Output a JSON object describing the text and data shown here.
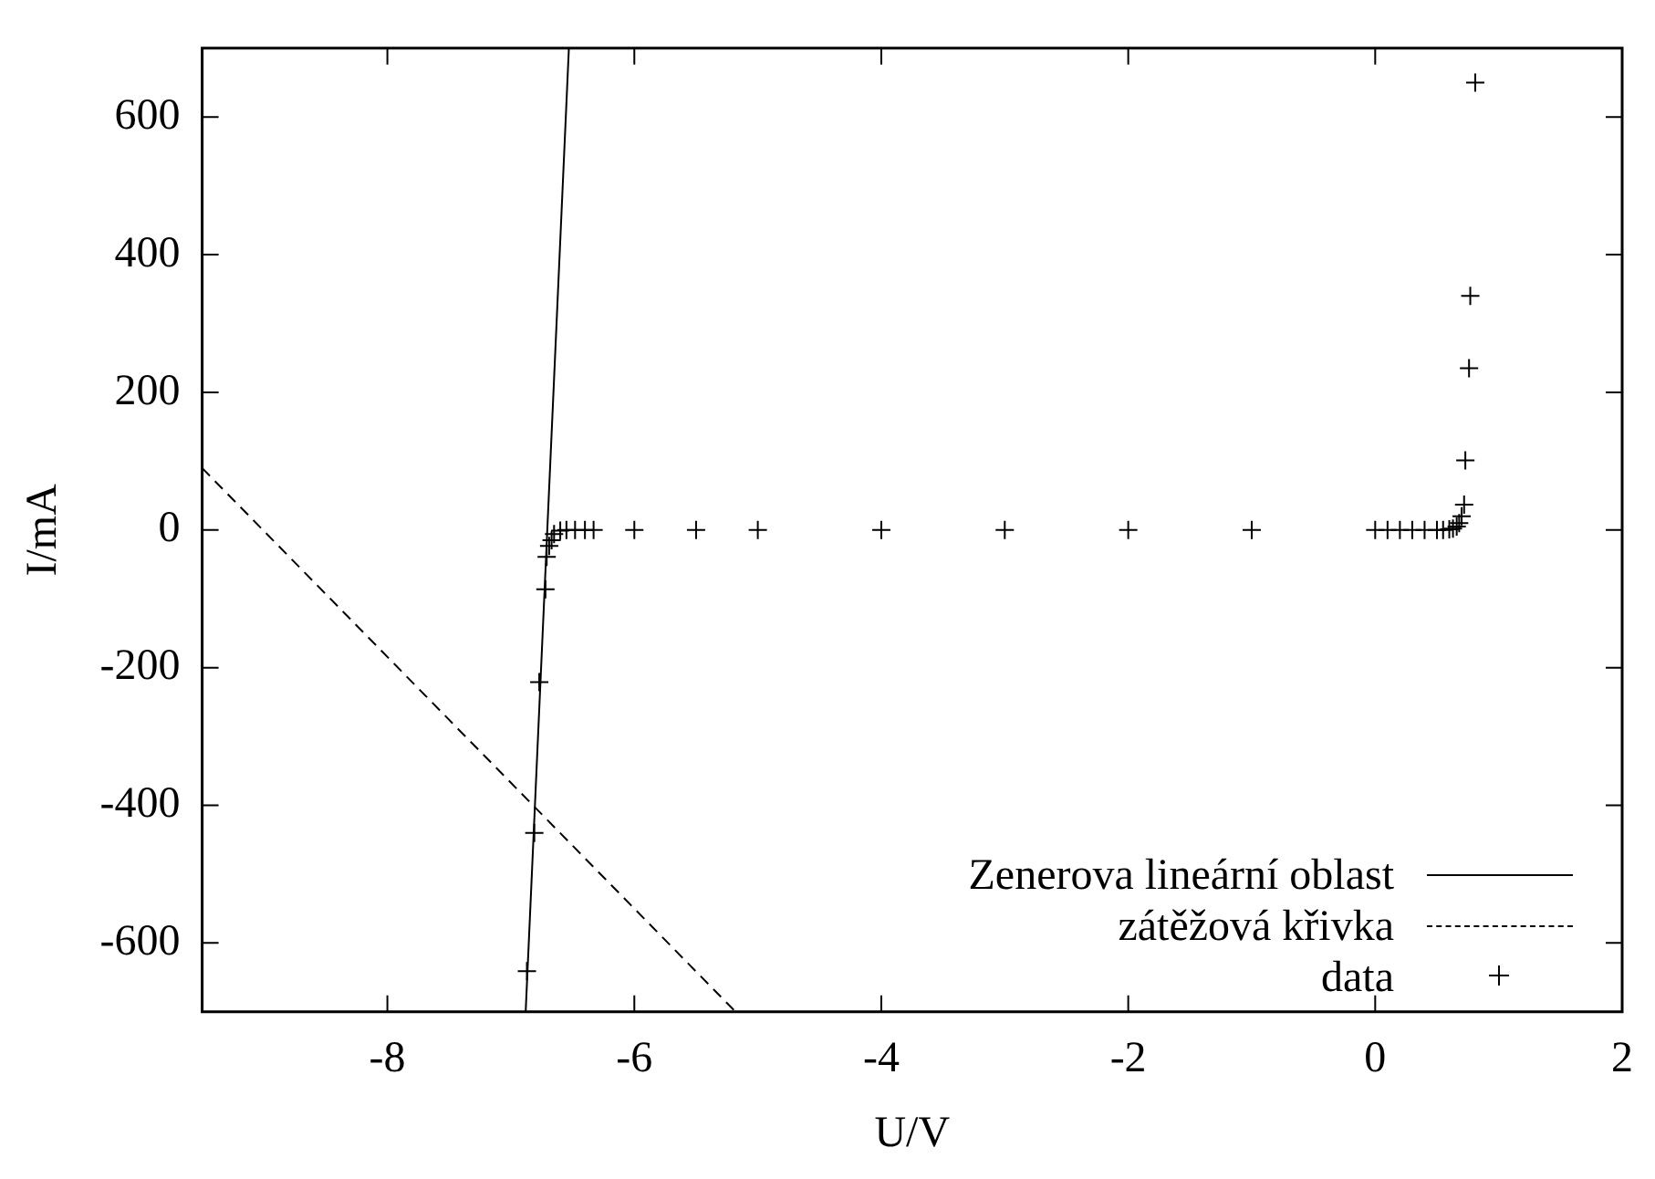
{
  "chart_data": {
    "type": "scatter",
    "xlabel": "U/V",
    "ylabel": "I/mA",
    "xlim": [
      -9.5,
      2
    ],
    "ylim": [
      -700,
      700
    ],
    "xticks": [
      -8,
      -6,
      -4,
      -2,
      0,
      2
    ],
    "yticks": [
      -600,
      -400,
      -200,
      0,
      200,
      400,
      600
    ],
    "grid": false,
    "legend": "bottom right",
    "series": [
      {
        "name": "Zenerova lineární oblast",
        "type": "line",
        "color": "#000000",
        "line_style": "solid",
        "marker": "none",
        "x": [
          -6.88,
          -6.53
        ],
        "values": [
          -700,
          700
        ]
      },
      {
        "name": "zátěžová křivka",
        "type": "line",
        "color": "#000000",
        "line_style": "dashed",
        "marker": "none",
        "x": [
          -9.5,
          -5.18
        ],
        "values": [
          90,
          -700
        ]
      },
      {
        "name": "data",
        "type": "scatter",
        "color": "#000000",
        "marker": "cross",
        "x": [
          -6.87,
          -6.81,
          -6.77,
          -6.72,
          -6.71,
          -6.69,
          -6.67,
          -6.65,
          -6.6,
          -6.55,
          -6.48,
          -6.4,
          -6.33,
          -6,
          -5.5,
          -5,
          -4,
          -3,
          -2,
          -1,
          0,
          0.1,
          0.2,
          0.3,
          0.4,
          0.5,
          0.55,
          0.6,
          0.63,
          0.66,
          0.68,
          0.7,
          0.72,
          0.73,
          0.76,
          0.77,
          0.81
        ],
        "values": [
          -641,
          -440,
          -221,
          -86,
          -39,
          -23,
          -15,
          -6,
          -1,
          0,
          0,
          0,
          0,
          0,
          0,
          0,
          0,
          0,
          0,
          0,
          0,
          0,
          0,
          0,
          0,
          0,
          0,
          1,
          2,
          5,
          10,
          20,
          37,
          101,
          235,
          340,
          650
        ]
      }
    ]
  }
}
